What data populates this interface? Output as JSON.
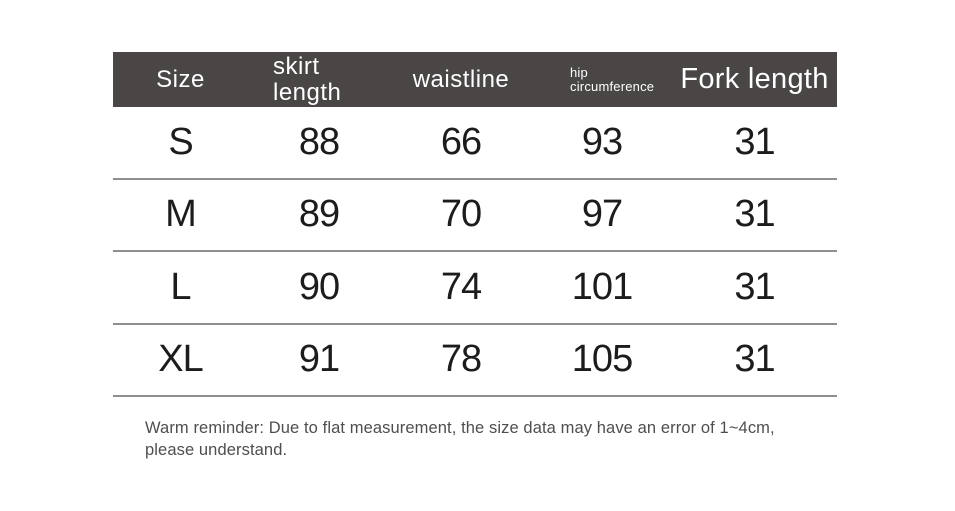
{
  "table": {
    "columns": [
      {
        "label": "Size"
      },
      {
        "label": "skirt length"
      },
      {
        "label": "waistline"
      },
      {
        "label": "hip circumference"
      },
      {
        "label": "Fork length"
      }
    ],
    "rows": [
      [
        "S",
        "88",
        "66",
        "93",
        "31"
      ],
      [
        "M",
        "89",
        "70",
        "97",
        "31"
      ],
      [
        "L",
        "90",
        "74",
        "101",
        "31"
      ],
      [
        "XL",
        "91",
        "78",
        "105",
        "31"
      ]
    ]
  },
  "note": "Warm reminder: Due to flat measurement, the size data may have an error of 1~4cm, please understand.",
  "colors": {
    "header_bg": "#4a4646",
    "header_text": "#ffffff",
    "body_text": "#1c1c1c",
    "divider": "#8f8f8f",
    "note_text": "#4e4e4e",
    "page_bg": "#ffffff"
  }
}
